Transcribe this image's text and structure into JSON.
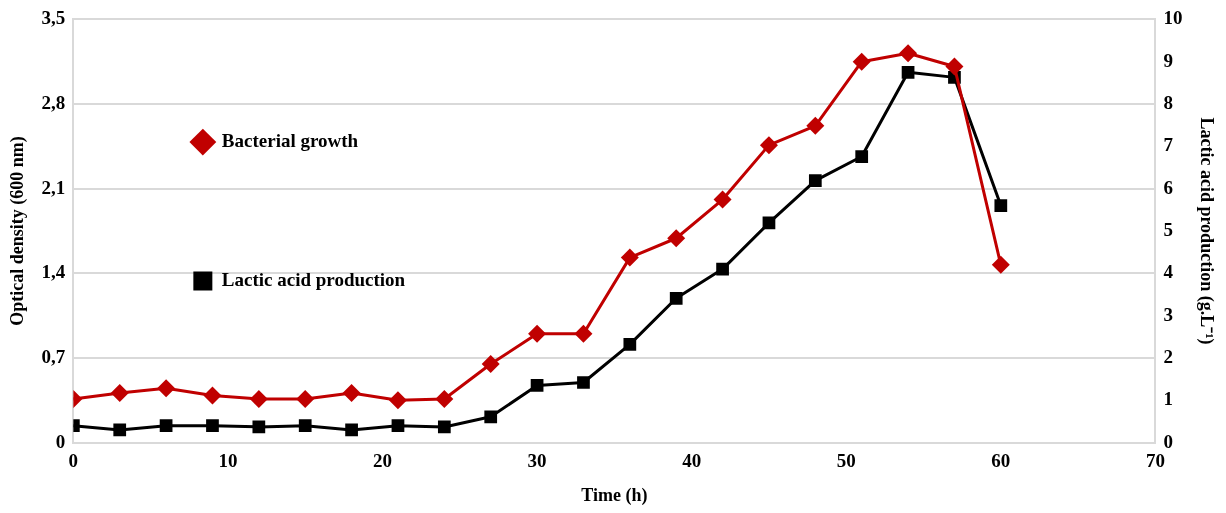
{
  "chart_data": {
    "type": "line",
    "xlabel": "Time (h)",
    "ylabel": "Optical density (600 nm)",
    "y2label": "Lactic acid production (g.L⁻¹)",
    "x": [
      0,
      3,
      6,
      9,
      12,
      15,
      18,
      21,
      24,
      27,
      30,
      33,
      36,
      39,
      42,
      45,
      48,
      51,
      54,
      57,
      60
    ],
    "series": [
      {
        "name": "Bacterial growth",
        "color": "#c00000",
        "marker": "diamond",
        "values": [
          0.36,
          0.41,
          0.45,
          0.39,
          0.36,
          0.36,
          0.41,
          0.35,
          0.36,
          0.65,
          0.9,
          0.9,
          1.53,
          1.69,
          2.01,
          2.46,
          2.62,
          3.15,
          3.22,
          3.11,
          1.47
        ]
      },
      {
        "name": "Lactic acid production",
        "color": "#000000",
        "marker": "square",
        "axis": "y2",
        "values": [
          0.4,
          0.3,
          0.4,
          0.4,
          0.37,
          0.4,
          0.3,
          0.4,
          0.37,
          0.61,
          1.35,
          1.42,
          2.32,
          3.41,
          4.1,
          5.19,
          6.19,
          6.76,
          8.75,
          8.63,
          5.6
        ]
      }
    ],
    "xlim": [
      0,
      70
    ],
    "xticks": [
      0,
      10,
      20,
      30,
      40,
      50,
      60,
      70
    ],
    "ylim": [
      0,
      3.5
    ],
    "yticks": [
      0,
      {
        "value": 0.7,
        "label": "0,7"
      },
      {
        "value": 1.4,
        "label": "1,4"
      },
      {
        "value": 2.1,
        "label": "2,1"
      },
      {
        "value": 2.8,
        "label": "2,8"
      },
      {
        "value": 3.5,
        "label": "3,5"
      }
    ],
    "y2lim": [
      0,
      10
    ],
    "y2ticks": [
      0,
      1,
      2,
      3,
      4,
      5,
      6,
      7,
      8,
      9,
      10
    ],
    "grid": "y",
    "legend": "top"
  }
}
